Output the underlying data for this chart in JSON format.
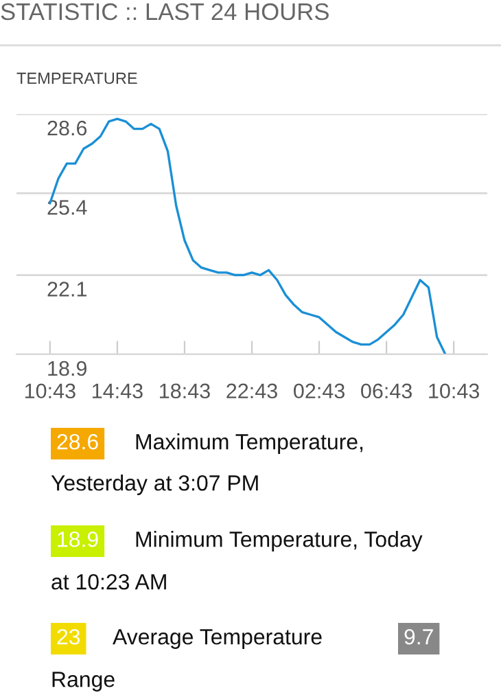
{
  "chart_data": {
    "type": "line",
    "title": "STATISTIC :: LAST 24 HOURS",
    "subtitle": "TEMPERATURE",
    "categories": [
      "10:43",
      null,
      null,
      null,
      null,
      null,
      null,
      null,
      "14:43",
      null,
      null,
      null,
      null,
      null,
      null,
      null,
      "18:43",
      null,
      null,
      null,
      null,
      null,
      null,
      null,
      "22:43",
      null,
      null,
      null,
      null,
      null,
      null,
      null,
      "02:43",
      null,
      null,
      null,
      null,
      null,
      null,
      null,
      "06:43",
      null,
      null,
      null,
      null,
      null,
      null,
      null,
      "10:43"
    ],
    "series": [
      {
        "color": "#1a8fd6",
        "values": [
          25.0,
          26.0,
          26.6,
          26.6,
          27.2,
          27.4,
          27.7,
          28.3,
          28.4,
          28.3,
          28.0,
          28.0,
          28.2,
          28.0,
          27.1,
          24.9,
          23.5,
          22.7,
          22.4,
          22.3,
          22.2,
          22.2,
          22.1,
          22.1,
          22.2,
          22.1,
          22.3,
          21.9,
          21.3,
          20.9,
          20.6,
          20.5,
          20.4,
          20.1,
          19.8,
          19.6,
          19.4,
          19.3,
          19.3,
          19.5,
          19.8,
          20.1,
          20.5,
          21.2,
          21.9,
          21.6,
          19.6,
          18.9,
          null
        ]
      }
    ],
    "ylim": [
      18.9,
      28.6
    ],
    "yticks": [
      18.9,
      22.1,
      25.4,
      28.6
    ],
    "grid": "y",
    "marker": "none",
    "line_style": "solid",
    "annotations": [
      "28.6",
      "Maximum Temperature,",
      "Yesterday at 3:07 PM",
      "18.9",
      "Minimum Temperature, Today",
      "at 10:23 AM",
      "23",
      "Average Temperature",
      "9.7",
      "Range"
    ]
  }
}
